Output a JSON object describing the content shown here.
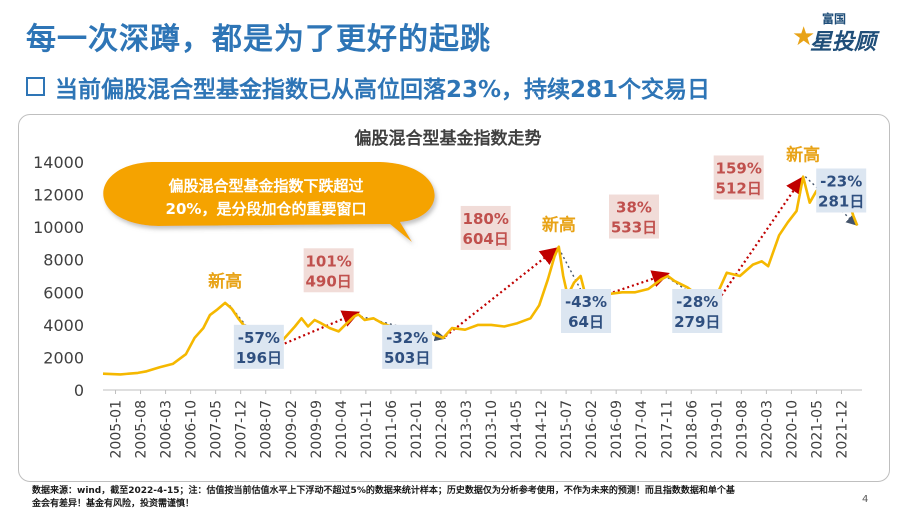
{
  "header": {
    "title": "每一次深蹲，都是为了更好的起跳",
    "subtitle": "当前偏股混合型基金指数已从高位回落23%，持续281个交易日",
    "logo_small": "富国",
    "logo_big": "星投顾"
  },
  "chart_data": {
    "type": "line",
    "title": "偏股混合型基金指数走势",
    "ylim": [
      0,
      14000
    ],
    "yticks": [
      0,
      2000,
      4000,
      6000,
      8000,
      10000,
      12000,
      14000
    ],
    "xtick_labels": [
      "2005-01",
      "2005-08",
      "2006-03",
      "2006-10",
      "2007-05",
      "2007-12",
      "2008-07",
      "2009-02",
      "2009-09",
      "2010-04",
      "2010-11",
      "2011-06",
      "2012-01",
      "2012-08",
      "2013-03",
      "2013-10",
      "2014-05",
      "2014-12",
      "2015-07",
      "2016-02",
      "2016-09",
      "2017-04",
      "2017-11",
      "2018-06",
      "2019-01",
      "2019-08",
      "2020-03",
      "2020-10",
      "2021-05",
      "2021-12"
    ],
    "series": [
      {
        "name": "偏股混合型基金指数",
        "color": "#f5b800",
        "points": [
          [
            2005.0,
            1000
          ],
          [
            2005.4,
            960
          ],
          [
            2005.8,
            1050
          ],
          [
            2006.0,
            1150
          ],
          [
            2006.3,
            1400
          ],
          [
            2006.6,
            1600
          ],
          [
            2006.9,
            2200
          ],
          [
            2007.1,
            3200
          ],
          [
            2007.3,
            3800
          ],
          [
            2007.45,
            4600
          ],
          [
            2007.6,
            4900
          ],
          [
            2007.8,
            5350
          ],
          [
            2007.95,
            5000
          ],
          [
            2008.1,
            4400
          ],
          [
            2008.25,
            3900
          ],
          [
            2008.4,
            3300
          ],
          [
            2008.6,
            2900
          ],
          [
            2008.8,
            2400
          ],
          [
            2009.0,
            2700
          ],
          [
            2009.2,
            3300
          ],
          [
            2009.4,
            3900
          ],
          [
            2009.55,
            4400
          ],
          [
            2009.7,
            3900
          ],
          [
            2009.85,
            4300
          ],
          [
            2010.0,
            4100
          ],
          [
            2010.2,
            3800
          ],
          [
            2010.4,
            3600
          ],
          [
            2010.55,
            4000
          ],
          [
            2010.75,
            4500
          ],
          [
            2010.85,
            4650
          ],
          [
            2011.0,
            4300
          ],
          [
            2011.2,
            4400
          ],
          [
            2011.4,
            4100
          ],
          [
            2011.6,
            3900
          ],
          [
            2011.8,
            3700
          ],
          [
            2012.0,
            3500
          ],
          [
            2012.2,
            3800
          ],
          [
            2012.4,
            3700
          ],
          [
            2012.6,
            3400
          ],
          [
            2012.8,
            3200
          ],
          [
            2013.0,
            3800
          ],
          [
            2013.3,
            3700
          ],
          [
            2013.6,
            4000
          ],
          [
            2013.9,
            4000
          ],
          [
            2014.2,
            3900
          ],
          [
            2014.5,
            4100
          ],
          [
            2014.8,
            4400
          ],
          [
            2015.0,
            5200
          ],
          [
            2015.2,
            6800
          ],
          [
            2015.35,
            8200
          ],
          [
            2015.45,
            8800
          ],
          [
            2015.55,
            7000
          ],
          [
            2015.65,
            5800
          ],
          [
            2015.8,
            6600
          ],
          [
            2015.95,
            7000
          ],
          [
            2016.1,
            5400
          ],
          [
            2016.3,
            5500
          ],
          [
            2016.6,
            5900
          ],
          [
            2016.9,
            6000
          ],
          [
            2017.2,
            6000
          ],
          [
            2017.5,
            6200
          ],
          [
            2017.8,
            6800
          ],
          [
            2017.95,
            7000
          ],
          [
            2018.1,
            6700
          ],
          [
            2018.4,
            6300
          ],
          [
            2018.7,
            5700
          ],
          [
            2018.95,
            5100
          ],
          [
            2019.15,
            6300
          ],
          [
            2019.3,
            7200
          ],
          [
            2019.6,
            7000
          ],
          [
            2019.9,
            7700
          ],
          [
            2020.1,
            7900
          ],
          [
            2020.25,
            7600
          ],
          [
            2020.5,
            9500
          ],
          [
            2020.7,
            10300
          ],
          [
            2020.9,
            11000
          ],
          [
            2021.05,
            13100
          ],
          [
            2021.2,
            11500
          ],
          [
            2021.35,
            12200
          ],
          [
            2021.5,
            12600
          ],
          [
            2021.65,
            11800
          ],
          [
            2021.8,
            12500
          ],
          [
            2021.95,
            13000
          ],
          [
            2022.05,
            12000
          ],
          [
            2022.2,
            10700
          ],
          [
            2022.29,
            10100
          ]
        ]
      }
    ],
    "annotations": {
      "peaks": [
        {
          "label": "新高",
          "x": 2007.8,
          "y": 5350
        },
        {
          "label": "新高",
          "x": 2015.45,
          "y": 8800
        },
        {
          "label": "新高",
          "x": 2021.05,
          "y": 13100
        }
      ],
      "declines": [
        {
          "pct": "-57%",
          "days": "196日",
          "from": [
            2007.9,
            5200
          ],
          "to": [
            2008.75,
            2400
          ],
          "box_at": [
            2008.0,
            1300
          ]
        },
        {
          "pct": "-32%",
          "days": "503日",
          "from": [
            2010.8,
            4600
          ],
          "to": [
            2012.8,
            3200
          ],
          "box_at": [
            2011.4,
            1300
          ]
        },
        {
          "pct": "-43%",
          "days": "64日",
          "from": [
            2015.45,
            8700
          ],
          "to": [
            2016.1,
            5400
          ],
          "box_at": [
            2015.5,
            3500
          ]
        },
        {
          "pct": "-28%",
          "days": "279日",
          "from": [
            2017.95,
            6900
          ],
          "to": [
            2018.95,
            5100
          ],
          "box_at": [
            2018.05,
            3500
          ]
        },
        {
          "pct": "-23%",
          "days": "281日",
          "from": [
            2021.1,
            13100
          ],
          "to": [
            2022.25,
            10200
          ],
          "box_at": [
            2021.35,
            10900
          ]
        }
      ],
      "rises": [
        {
          "pct": "101%",
          "days": "490日",
          "from": [
            2008.85,
            2500
          ],
          "to": [
            2010.8,
            4700
          ],
          "box_at": [
            2009.6,
            6000
          ]
        },
        {
          "pct": "180%",
          "days": "604日",
          "from": [
            2012.85,
            3300
          ],
          "to": [
            2015.35,
            8600
          ],
          "box_at": [
            2013.2,
            8600
          ]
        },
        {
          "pct": "38%",
          "days": "533日",
          "from": [
            2016.15,
            5500
          ],
          "to": [
            2017.9,
            7100
          ],
          "box_at": [
            2016.6,
            9300
          ]
        },
        {
          "pct": "159%",
          "days": "512日",
          "from": [
            2019.05,
            5300
          ],
          "to": [
            2021.0,
            12900
          ],
          "box_at": [
            2019.0,
            11700
          ]
        }
      ]
    },
    "callout": {
      "line1": "偏股混合型基金指数下跌超过",
      "line2": "20%，是分段加仓的重要窗口"
    }
  },
  "footer": {
    "line1": "数据来源：wind，截至2022-4-15；注：估值按当前估值水平上下浮动不超过5%的数据来统计样本；历史数据仅为分析参考使用，不作为未来的预测！而且指数数据和单个基",
    "line2": "金会有差异！基金有风险，投资需谨慎！",
    "page": "4"
  }
}
